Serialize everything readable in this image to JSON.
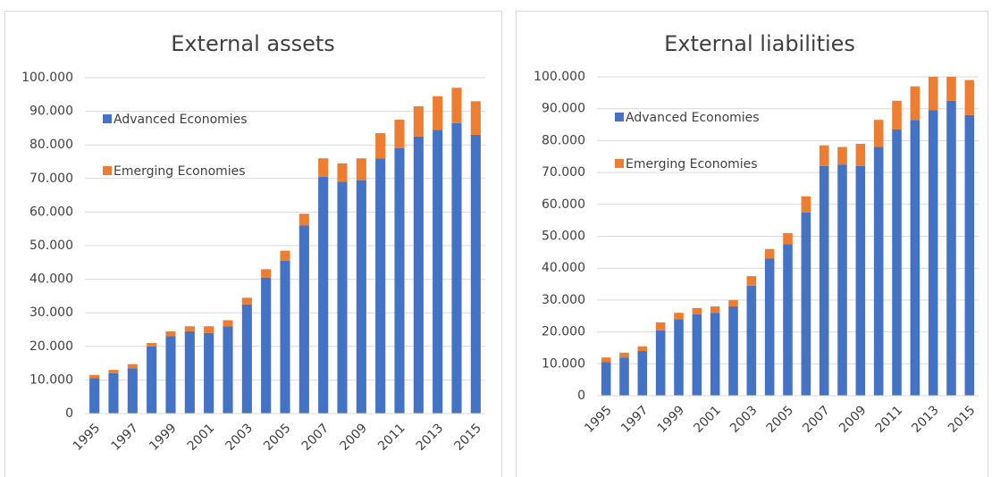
{
  "chart_data": [
    {
      "type": "stacked_bar",
      "title": "External assets",
      "categories": [
        "1995",
        null,
        "1997",
        null,
        "1999",
        null,
        "2001",
        null,
        "2003",
        null,
        "2005",
        null,
        "2007",
        null,
        "2009",
        null,
        "2011",
        null,
        "2013",
        null,
        "2015"
      ],
      "series": [
        {
          "name": "Advanced Economies",
          "color": "#4472c4",
          "values": [
            10500,
            12000,
            13500,
            20000,
            23000,
            24500,
            24000,
            26000,
            32500,
            40500,
            45500,
            56000,
            70500,
            69000,
            69500,
            76000,
            79000,
            82500,
            84500,
            86500,
            83000
          ]
        },
        {
          "name": "Emerging Economies",
          "color": "#ed7d31",
          "values": [
            1000,
            1000,
            1200,
            1000,
            1500,
            1500,
            2000,
            1800,
            2000,
            2500,
            3000,
            3500,
            5500,
            5500,
            6500,
            7500,
            8500,
            9000,
            10000,
            10500,
            10000
          ]
        }
      ],
      "ylim": [
        0,
        100000
      ],
      "yticks": [
        0,
        {
          "value": 10000,
          "label": "10.000"
        },
        {
          "value": 20000,
          "label": "20.000"
        },
        {
          "value": 30000,
          "label": "30.000"
        },
        {
          "value": 40000,
          "label": "40.000"
        },
        {
          "value": 50000,
          "label": "50.000"
        },
        {
          "value": 60000,
          "label": "60.000"
        },
        {
          "value": 70000,
          "label": "70.000"
        },
        {
          "value": 80000,
          "label": "80.000"
        },
        {
          "value": 90000,
          "label": "90.000"
        },
        {
          "value": 100000,
          "label": "100.000"
        }
      ],
      "grid": true,
      "legend": "top-left"
    },
    {
      "type": "stacked_bar",
      "title": "External liabilities",
      "categories": [
        "1995",
        null,
        "1997",
        null,
        "1999",
        null,
        "2001",
        null,
        "2003",
        null,
        "2005",
        null,
        "2007",
        null,
        "2009",
        null,
        "2011",
        null,
        "2013",
        null,
        "2015"
      ],
      "series": [
        {
          "name": "Advanced Economies",
          "color": "#4472c4",
          "values": [
            10500,
            12000,
            14000,
            20500,
            24000,
            25500,
            26000,
            28000,
            34500,
            43000,
            47500,
            57500,
            72000,
            72500,
            72000,
            78000,
            83500,
            86500,
            89500,
            92500,
            88000
          ]
        },
        {
          "name": "Emerging Economies",
          "color": "#ed7d31",
          "values": [
            1500,
            1500,
            1500,
            2500,
            2000,
            2000,
            2000,
            2000,
            3000,
            3000,
            3500,
            5000,
            6500,
            5500,
            7000,
            8500,
            9000,
            10500,
            10500,
            9500,
            11000
          ]
        }
      ],
      "ylim": [
        0,
        100000
      ],
      "yticks": [
        0,
        {
          "value": 10000,
          "label": "10.000"
        },
        {
          "value": 20000,
          "label": "20.000"
        },
        {
          "value": 30000,
          "label": "30.000"
        },
        {
          "value": 40000,
          "label": "40.000"
        },
        {
          "value": 50000,
          "label": "50.000"
        },
        {
          "value": 60000,
          "label": "60.000"
        },
        {
          "value": 70000,
          "label": "70.000"
        },
        {
          "value": 80000,
          "label": "80.000"
        },
        {
          "value": 90000,
          "label": "90.000"
        },
        {
          "value": 100000,
          "label": "100.000"
        }
      ],
      "grid": true,
      "legend": "top-left"
    }
  ]
}
